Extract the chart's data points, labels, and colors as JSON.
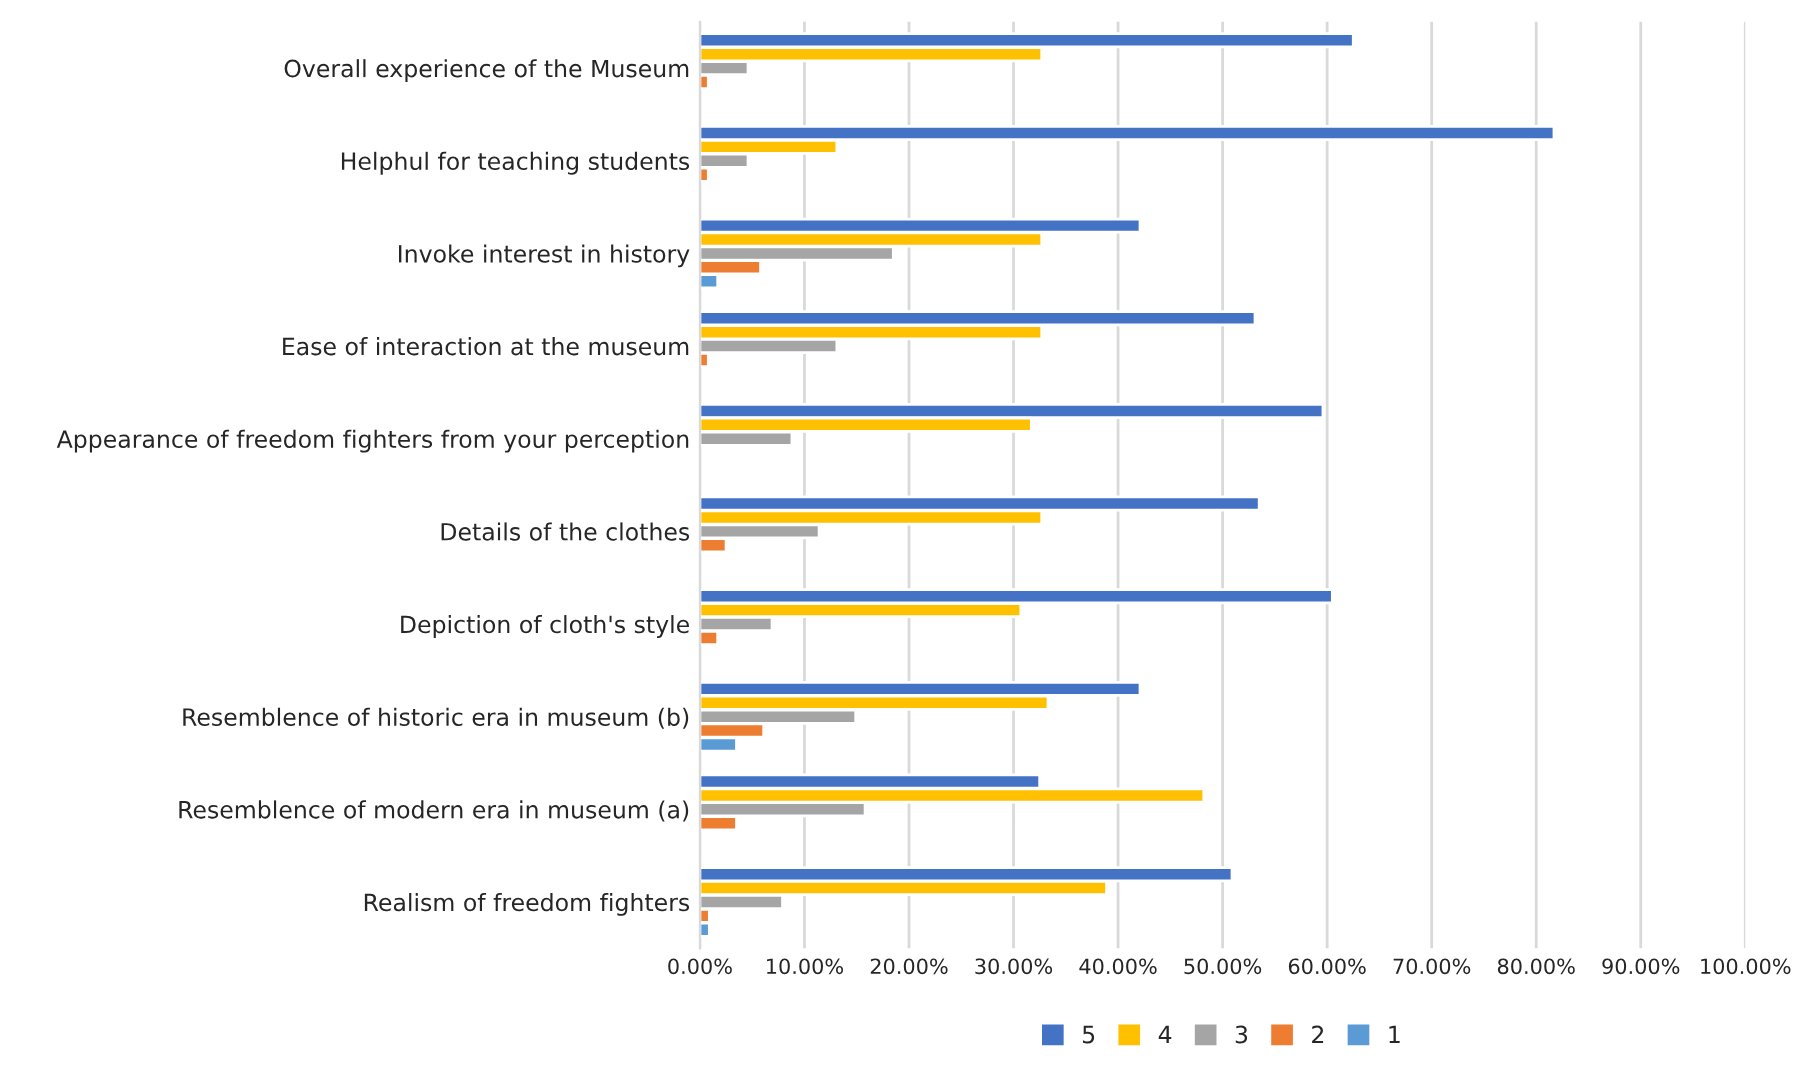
{
  "chart_data": {
    "type": "bar",
    "orientation": "horizontal",
    "categories": [
      "Overall experience of the Museum",
      "Helphul for teaching students",
      "Invoke interest in history",
      "Ease of interaction at the museum",
      "Appearance of freedom fighters from your perception",
      "Details of the clothes",
      "Depiction of cloth's style",
      "Resemblence of historic era in museum (b)",
      "Resemblence of modern era in museum (a)",
      "Realism of freedom fighters"
    ],
    "series": [
      {
        "name": "5",
        "color": "#4472c4",
        "values": [
          62.5,
          81.7,
          42.1,
          53.1,
          59.6,
          53.5,
          60.5,
          42.1,
          32.5,
          50.9
        ]
      },
      {
        "name": "4",
        "color": "#ffc000",
        "values": [
          32.7,
          13.1,
          32.7,
          32.7,
          31.7,
          32.7,
          30.7,
          33.3,
          48.2,
          38.9
        ]
      },
      {
        "name": "3",
        "color": "#a5a5a5",
        "values": [
          4.6,
          4.6,
          18.5,
          13.1,
          8.8,
          11.4,
          6.9,
          14.9,
          15.8,
          7.9
        ]
      },
      {
        "name": "2",
        "color": "#ed7d31",
        "values": [
          0.8,
          0.8,
          5.8,
          0.8,
          null,
          2.5,
          1.7,
          6.1,
          3.5,
          0.9
        ]
      },
      {
        "name": "1",
        "color": "#5b9bd5",
        "values": [
          null,
          null,
          1.7,
          null,
          null,
          null,
          null,
          3.5,
          null,
          0.9
        ]
      }
    ],
    "xlim": [
      0,
      100
    ],
    "xticks": [
      {
        "value": 0,
        "label": "0.00%"
      },
      {
        "value": 10,
        "label": "10.00%"
      },
      {
        "value": 20,
        "label": "20.00%"
      },
      {
        "value": 30,
        "label": "30.00%"
      },
      {
        "value": 40,
        "label": "40.00%"
      },
      {
        "value": 50,
        "label": "50.00%"
      },
      {
        "value": 60,
        "label": "60.00%"
      },
      {
        "value": 70,
        "label": "70.00%"
      },
      {
        "value": 80,
        "label": "80.00%"
      },
      {
        "value": 90,
        "label": "90.00%"
      },
      {
        "value": 100,
        "label": "100.00%"
      }
    ],
    "grid": "x",
    "legend": "bottom"
  }
}
